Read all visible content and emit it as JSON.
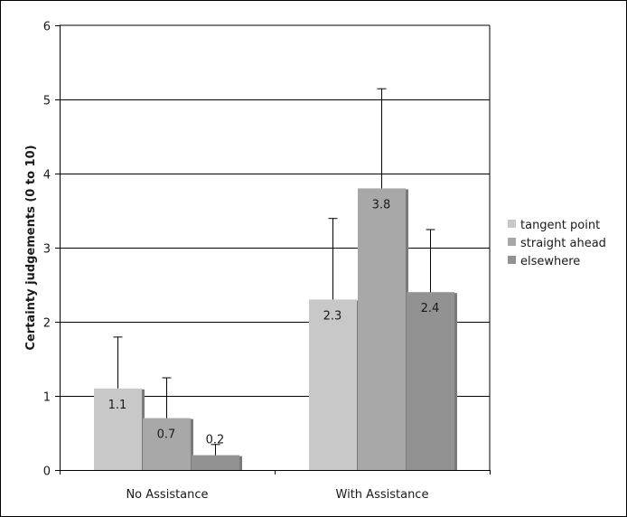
{
  "chart_data": {
    "type": "bar",
    "title": "",
    "xlabel": "",
    "ylabel": "Certainty judgements (0 to 10)",
    "ylim": [
      0,
      6
    ],
    "yticks": [
      0,
      1,
      2,
      3,
      4,
      5,
      6
    ],
    "grid": true,
    "legend_position": "right",
    "categories": [
      "No Assistance",
      "With Assistance"
    ],
    "series": [
      {
        "name": "tangent point",
        "color": "#c8c8c8",
        "values": [
          1.1,
          2.3
        ],
        "labels": [
          "1.1",
          "2.3"
        ],
        "error": [
          0.7,
          1.1
        ]
      },
      {
        "name": "straight ahead",
        "color": "#a8a8a8",
        "values": [
          0.7,
          3.8
        ],
        "labels": [
          "0.7",
          "3.8"
        ],
        "error": [
          0.55,
          1.35
        ]
      },
      {
        "name": "elsewhere",
        "color": "#929292",
        "values": [
          0.2,
          2.4
        ],
        "labels": [
          "0.2",
          "2.4"
        ],
        "error": [
          0.15,
          0.85
        ]
      }
    ]
  }
}
